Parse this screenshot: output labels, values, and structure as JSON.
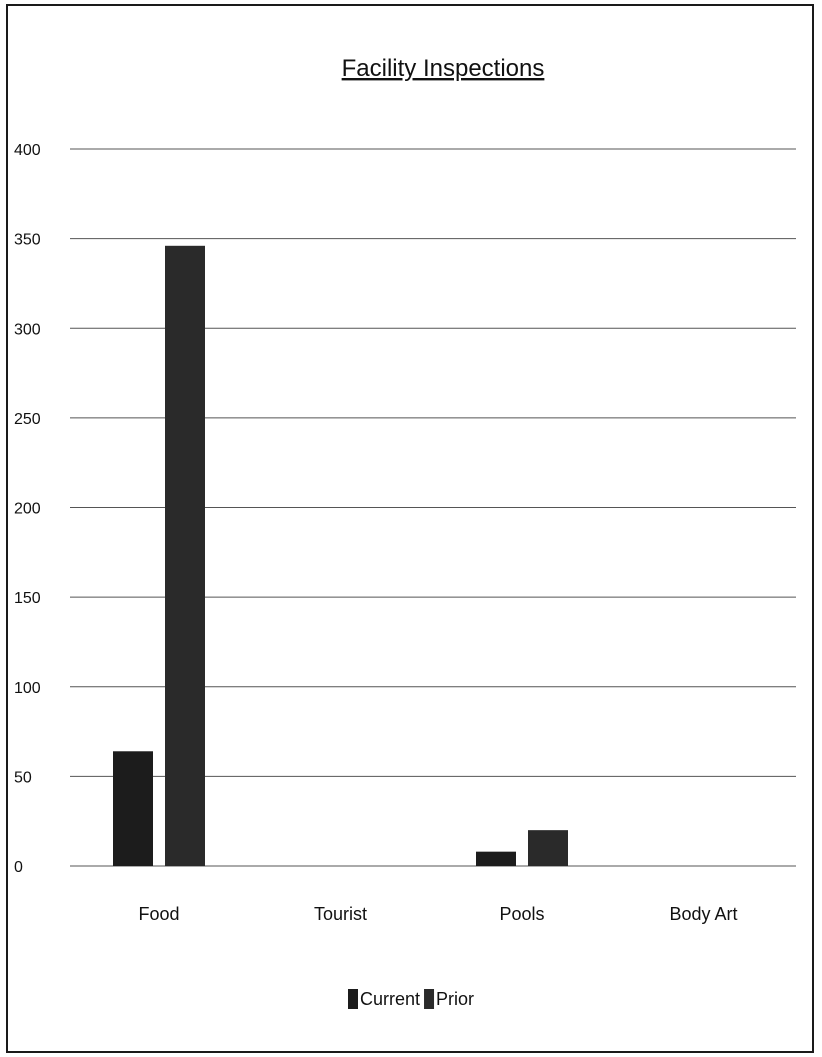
{
  "chart_data": {
    "type": "bar",
    "title": "Facility Inspections",
    "xlabel": "",
    "ylabel": "",
    "categories": [
      "Food",
      "Tourist",
      "Pools",
      "Body Art"
    ],
    "series": [
      {
        "name": "Current",
        "values": [
          64,
          0,
          8,
          0
        ]
      },
      {
        "name": "Prior",
        "values": [
          346,
          0,
          20,
          0
        ]
      }
    ],
    "ylim": [
      0,
      400
    ],
    "yticks": [
      0,
      50,
      100,
      150,
      200,
      250,
      300,
      350,
      400
    ],
    "grid": true,
    "legend_position": "bottom",
    "colors": {
      "Current": "#1c1c1c",
      "Prior": "#2a2a2a",
      "grid": "#555555",
      "text": "#111111"
    }
  }
}
